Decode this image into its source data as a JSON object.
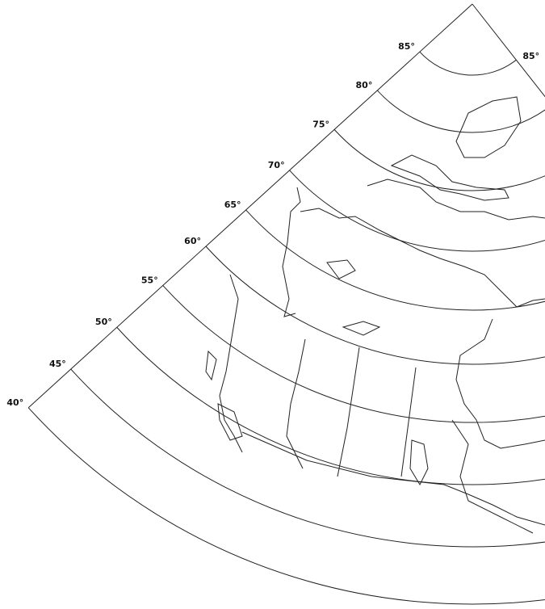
{
  "latitude_labels": [
    "85°",
    "80°",
    "75°",
    "70°",
    "65°",
    "60°",
    "55°",
    "50°",
    "45°",
    "40°"
  ],
  "right_label": "85°"
}
